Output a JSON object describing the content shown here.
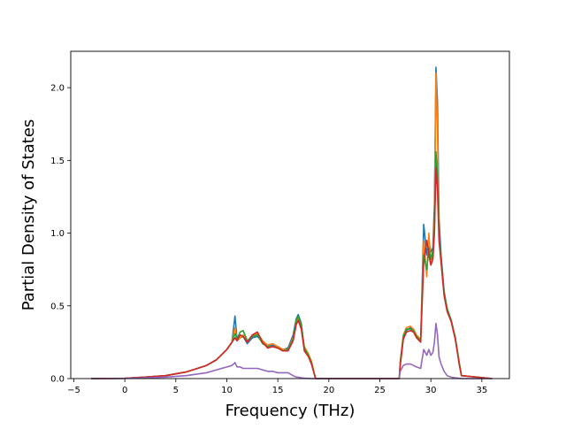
{
  "chart_data": {
    "type": "line",
    "title": "",
    "xlabel": "Frequency (THz)",
    "ylabel": "Partial Density of States",
    "xlim": [
      -5.3,
      37.7
    ],
    "ylim": [
      0,
      2.25
    ],
    "xticks": [
      -5,
      0,
      5,
      10,
      15,
      20,
      25,
      30,
      35
    ],
    "yticks": [
      0.0,
      0.5,
      1.0,
      1.5,
      2.0
    ],
    "xtick_labels": [
      "−5",
      "0",
      "5",
      "10",
      "15",
      "20",
      "25",
      "30",
      "35"
    ],
    "ytick_labels": [
      "0.0",
      "0.5",
      "1.0",
      "1.5",
      "2.0"
    ],
    "grid": false,
    "legend": false,
    "colors": [
      "#1f77b4",
      "#ff7f0e",
      "#2ca02c",
      "#d62728",
      "#9467bd",
      "#8c564b",
      "#e377c2",
      "#7f7f7f",
      "#bcbd22",
      "#17becf"
    ],
    "x": [
      -3.3,
      0,
      2,
      4,
      6,
      8,
      9,
      10,
      10.5,
      10.8,
      11.0,
      11.3,
      11.6,
      12.0,
      12.5,
      13.0,
      13.5,
      14.0,
      14.5,
      15.0,
      15.5,
      16.0,
      16.5,
      16.8,
      17.0,
      17.3,
      17.6,
      18.0,
      18.3,
      18.5,
      18.7,
      20,
      26.9,
      27.0,
      27.3,
      27.6,
      28.0,
      28.3,
      28.6,
      29.0,
      29.3,
      29.6,
      29.8,
      30.0,
      30.2,
      30.35,
      30.5,
      30.65,
      30.8,
      31.0,
      31.3,
      31.6,
      32.0,
      32.4,
      32.8,
      33.0,
      36.0
    ],
    "series": [
      {
        "values": [
          0,
          0.002,
          0.01,
          0.02,
          0.045,
          0.09,
          0.13,
          0.2,
          0.25,
          0.43,
          0.27,
          0.28,
          0.29,
          0.24,
          0.28,
          0.29,
          0.25,
          0.22,
          0.23,
          0.22,
          0.2,
          0.21,
          0.3,
          0.41,
          0.44,
          0.38,
          0.2,
          0.16,
          0.1,
          0.05,
          0,
          0,
          0,
          0.1,
          0.28,
          0.33,
          0.35,
          0.33,
          0.29,
          0.26,
          1.06,
          0.85,
          0.95,
          0.87,
          0.9,
          1.2,
          2.14,
          1.9,
          1.1,
          0.85,
          0.6,
          0.48,
          0.4,
          0.28,
          0.1,
          0.02,
          0
        ]
      },
      {
        "values": [
          0,
          0.002,
          0.01,
          0.02,
          0.045,
          0.09,
          0.13,
          0.2,
          0.25,
          0.35,
          0.26,
          0.28,
          0.3,
          0.25,
          0.3,
          0.31,
          0.26,
          0.23,
          0.24,
          0.22,
          0.2,
          0.2,
          0.28,
          0.38,
          0.42,
          0.35,
          0.22,
          0.17,
          0.12,
          0.06,
          0,
          0,
          0,
          0.12,
          0.3,
          0.35,
          0.36,
          0.34,
          0.3,
          0.27,
          0.95,
          0.7,
          1.0,
          0.8,
          0.85,
          1.1,
          2.1,
          1.7,
          1.0,
          0.8,
          0.58,
          0.47,
          0.39,
          0.27,
          0.1,
          0.02,
          0
        ]
      },
      {
        "values": [
          0,
          0.002,
          0.01,
          0.02,
          0.045,
          0.09,
          0.13,
          0.2,
          0.25,
          0.31,
          0.27,
          0.32,
          0.33,
          0.26,
          0.29,
          0.3,
          0.24,
          0.22,
          0.22,
          0.21,
          0.19,
          0.2,
          0.27,
          0.4,
          0.43,
          0.37,
          0.21,
          0.16,
          0.11,
          0.05,
          0,
          0,
          0,
          0.11,
          0.29,
          0.34,
          0.34,
          0.33,
          0.29,
          0.26,
          0.85,
          0.75,
          0.9,
          0.82,
          0.88,
          1.05,
          1.56,
          1.4,
          1.0,
          0.82,
          0.59,
          0.48,
          0.4,
          0.28,
          0.1,
          0.02,
          0
        ]
      },
      {
        "values": [
          0,
          0.002,
          0.01,
          0.02,
          0.045,
          0.09,
          0.13,
          0.2,
          0.25,
          0.28,
          0.26,
          0.3,
          0.29,
          0.25,
          0.3,
          0.32,
          0.25,
          0.21,
          0.22,
          0.21,
          0.19,
          0.19,
          0.26,
          0.37,
          0.4,
          0.34,
          0.19,
          0.15,
          0.1,
          0.05,
          0,
          0,
          0,
          0.09,
          0.27,
          0.32,
          0.33,
          0.32,
          0.28,
          0.25,
          0.8,
          0.95,
          0.85,
          0.78,
          0.82,
          1.0,
          1.45,
          1.3,
          0.95,
          0.8,
          0.57,
          0.46,
          0.39,
          0.27,
          0.09,
          0.02,
          0
        ]
      },
      {
        "values": [
          0,
          0.001,
          0.005,
          0.01,
          0.02,
          0.04,
          0.06,
          0.08,
          0.09,
          0.11,
          0.08,
          0.08,
          0.07,
          0.07,
          0.07,
          0.07,
          0.06,
          0.05,
          0.05,
          0.04,
          0.04,
          0.04,
          0.02,
          0.01,
          0.01,
          0.005,
          0.003,
          0.001,
          0,
          0,
          0,
          0,
          0,
          0.05,
          0.09,
          0.1,
          0.1,
          0.09,
          0.08,
          0.07,
          0.2,
          0.16,
          0.2,
          0.16,
          0.18,
          0.25,
          0.38,
          0.3,
          0.15,
          0.1,
          0.05,
          0.02,
          0.01,
          0.005,
          0.002,
          0,
          0
        ]
      }
    ]
  }
}
